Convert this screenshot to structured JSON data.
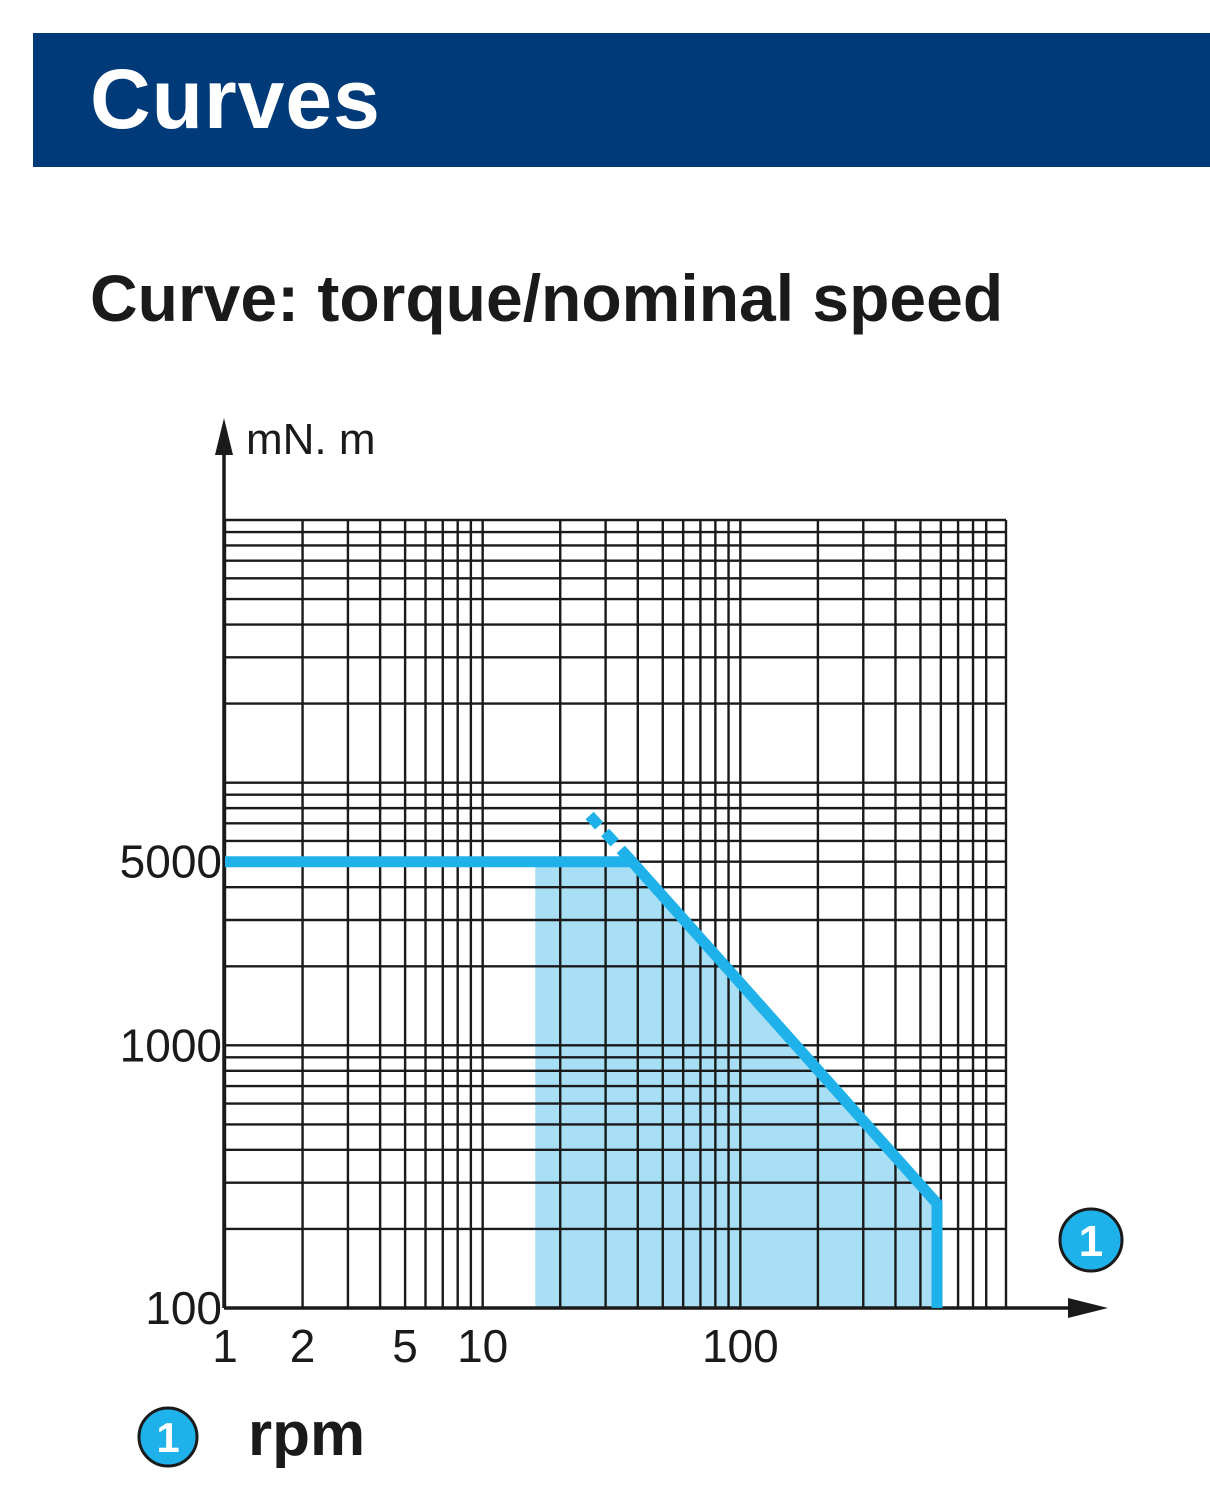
{
  "header": {
    "title": "Curves"
  },
  "subtitle": "Curve: torque/nominal speed",
  "legend": {
    "marker": "1",
    "label": "rpm"
  },
  "colors": {
    "band": "#003a78",
    "curve": "#1fb2ea",
    "area": "#a9dff5",
    "grid": "#1a1a1a"
  },
  "chart_data": {
    "type": "line",
    "x_scale": "log",
    "y_scale": "log",
    "xlim": [
      1,
      1000
    ],
    "ylim": [
      100,
      100000
    ],
    "ylabel": "mN. m",
    "x_axis_marker": "1",
    "x_ticks": [
      {
        "value": 1,
        "label": "1"
      },
      {
        "value": 2,
        "label": "2"
      },
      {
        "value": 5,
        "label": "5"
      },
      {
        "value": 10,
        "label": "10"
      },
      {
        "value": 100,
        "label": "100"
      }
    ],
    "y_ticks": [
      {
        "value": 100,
        "label": "100"
      },
      {
        "value": 1000,
        "label": "1000"
      },
      {
        "value": 5000,
        "label": "5000"
      }
    ],
    "grid": true,
    "series": [
      {
        "style": "solid",
        "points": [
          [
            1,
            5000
          ],
          [
            38,
            5000
          ],
          [
            580,
            250
          ],
          [
            580,
            100
          ]
        ]
      },
      {
        "style": "dashed",
        "points": [
          [
            26,
            7500
          ],
          [
            38,
            5000
          ]
        ]
      }
    ],
    "shaded_region": {
      "x_start": 16,
      "points": [
        [
          16,
          100
        ],
        [
          16,
          5000
        ],
        [
          38,
          5000
        ],
        [
          580,
          250
        ],
        [
          580,
          100
        ]
      ]
    }
  }
}
